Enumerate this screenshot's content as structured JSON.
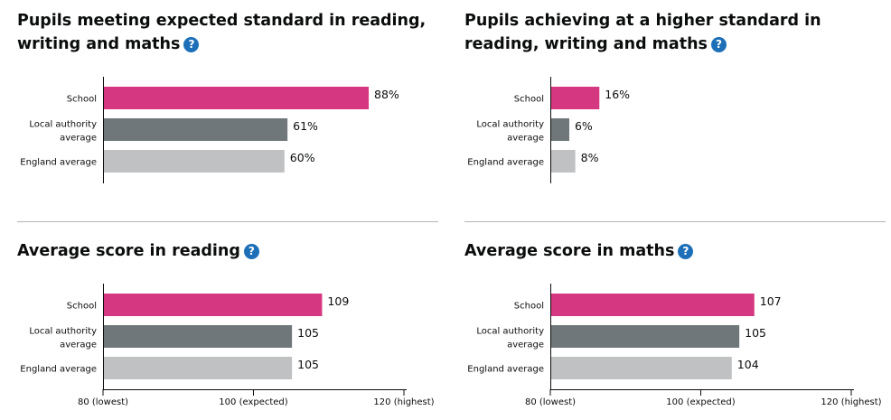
{
  "colors": {
    "school": "#d53880",
    "local_authority": "#6f777b",
    "england": "#bfc1c3",
    "axis": "#0b0c0c",
    "help": "#1d70b8"
  },
  "help_icon": {
    "glyph": "?",
    "icon": "question-mark-icon"
  },
  "panels": [
    {
      "title": "Pupils meeting expected standard in reading, writing and maths"
    },
    {
      "title": "Pupils achieving at a higher standard in reading, writing and maths"
    },
    {
      "title": "Average score in reading"
    },
    {
      "title": "Average score in maths"
    }
  ],
  "chart_data": [
    {
      "type": "bar",
      "orientation": "horizontal",
      "title": "Pupils meeting expected standard in reading, writing and maths",
      "categories": [
        [
          "School"
        ],
        [
          "Local authority",
          "average"
        ],
        [
          "England average"
        ]
      ],
      "values": [
        88,
        61,
        60
      ],
      "value_labels": [
        "88%",
        "61%",
        "60%"
      ],
      "xlim": [
        0,
        100
      ]
    },
    {
      "type": "bar",
      "orientation": "horizontal",
      "title": "Pupils achieving at a higher standard in reading, writing and maths",
      "categories": [
        [
          "School"
        ],
        [
          "Local authority",
          "average"
        ],
        [
          "England average"
        ]
      ],
      "values": [
        16,
        6,
        8
      ],
      "value_labels": [
        "16%",
        "6%",
        "8%"
      ],
      "xlim": [
        0,
        100
      ]
    },
    {
      "type": "bar",
      "orientation": "horizontal",
      "title": "Average score in reading",
      "categories": [
        [
          "School"
        ],
        [
          "Local authority",
          "average"
        ],
        [
          "England average"
        ]
      ],
      "values": [
        109,
        105,
        105
      ],
      "value_labels": [
        "109",
        "105",
        "105"
      ],
      "xlim": [
        80,
        120
      ],
      "x_tick_labels": [
        {
          "value": 80,
          "label": "80 (lowest)"
        },
        {
          "value": 100,
          "label": "100 (expected)"
        },
        {
          "value": 120,
          "label": "120 (highest)"
        }
      ]
    },
    {
      "type": "bar",
      "orientation": "horizontal",
      "title": "Average score in maths",
      "categories": [
        [
          "School"
        ],
        [
          "Local authority",
          "average"
        ],
        [
          "England average"
        ]
      ],
      "values": [
        107,
        105,
        104
      ],
      "value_labels": [
        "107",
        "105",
        "104"
      ],
      "xlim": [
        80,
        120
      ],
      "x_tick_labels": [
        {
          "value": 80,
          "label": "80 (lowest)"
        },
        {
          "value": 100,
          "label": "100 (expected)"
        },
        {
          "value": 120,
          "label": "120 (highest)"
        }
      ]
    }
  ]
}
